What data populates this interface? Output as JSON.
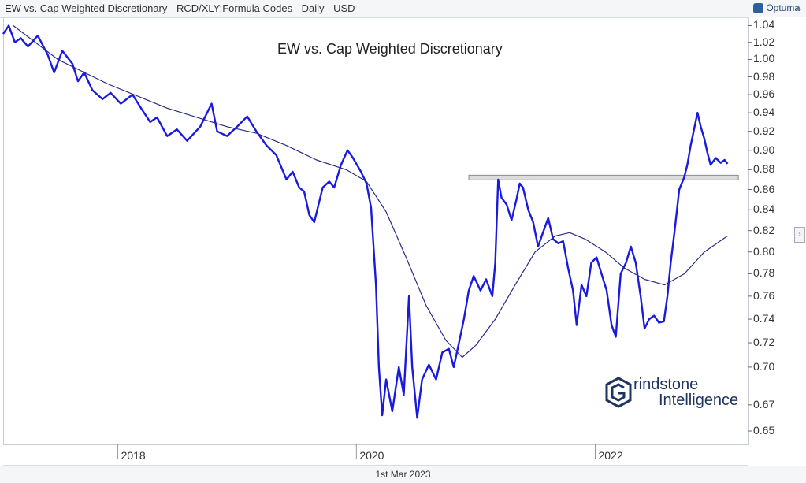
{
  "header": {
    "title": "EW vs. Cap Weighted Discretionary - RCD/XLY:Formula Codes - Daily - USD",
    "brand": "Optuma"
  },
  "footer": {
    "date": "1st Mar 2023"
  },
  "watermark": {
    "line1": "rindstone",
    "line2": "Intelligence"
  },
  "colors": {
    "price": "#1a1adf",
    "ma": "#2a2a8a",
    "resistance_fill": "#dcdcdc",
    "resistance_stroke": "#8a8a8a"
  },
  "chart_data": {
    "type": "line",
    "title": "EW vs. Cap Weighted Discretionary",
    "xlabel": "",
    "ylabel": "",
    "y_scale": "log",
    "ylim": [
      0.64,
      1.05
    ],
    "xlim": [
      "2017-01-15",
      "2023-04-15"
    ],
    "x_ticks": [
      {
        "label": "2018",
        "x": "2018-01-01"
      },
      {
        "label": "2020",
        "x": "2020-01-01"
      },
      {
        "label": "2022",
        "x": "2022-01-01"
      }
    ],
    "y_ticks": [
      1.04,
      1.02,
      1.0,
      0.98,
      0.96,
      0.94,
      0.92,
      0.9,
      0.88,
      0.86,
      0.84,
      0.82,
      0.8,
      0.78,
      0.76,
      0.74,
      0.72,
      0.7,
      0.67,
      0.65
    ],
    "y_tick_labels": [
      "1.04",
      "1.02",
      "1.00",
      "0.98",
      "0.96",
      "0.94",
      "0.92",
      "0.90",
      "0.88",
      "0.86",
      "0.84",
      "0.82",
      "0.80",
      "0.78",
      "0.76",
      "0.74",
      "0.72",
      "0.70",
      "0.67",
      "0.65"
    ],
    "resistance": {
      "from": "2020-12-10",
      "to": "2023-03-15",
      "y": 0.872
    },
    "series": [
      {
        "type": "price",
        "points": [
          [
            "2017-01-15",
            1.03
          ],
          [
            "2017-02-01",
            1.04
          ],
          [
            "2017-02-20",
            1.02
          ],
          [
            "2017-03-10",
            1.025
          ],
          [
            "2017-04-01",
            1.015
          ],
          [
            "2017-05-01",
            1.028
          ],
          [
            "2017-06-01",
            1.005
          ],
          [
            "2017-06-20",
            0.985
          ],
          [
            "2017-07-15",
            1.01
          ],
          [
            "2017-08-15",
            0.995
          ],
          [
            "2017-09-01",
            0.975
          ],
          [
            "2017-09-20",
            0.985
          ],
          [
            "2017-10-15",
            0.965
          ],
          [
            "2017-11-15",
            0.955
          ],
          [
            "2017-12-10",
            0.962
          ],
          [
            "2018-01-10",
            0.95
          ],
          [
            "2018-02-15",
            0.96
          ],
          [
            "2018-03-15",
            0.944
          ],
          [
            "2018-04-10",
            0.93
          ],
          [
            "2018-05-01",
            0.935
          ],
          [
            "2018-06-01",
            0.915
          ],
          [
            "2018-07-01",
            0.922
          ],
          [
            "2018-08-01",
            0.91
          ],
          [
            "2018-09-10",
            0.925
          ],
          [
            "2018-10-15",
            0.95
          ],
          [
            "2018-11-01",
            0.92
          ],
          [
            "2018-12-01",
            0.915
          ],
          [
            "2019-01-01",
            0.925
          ],
          [
            "2019-02-01",
            0.936
          ],
          [
            "2019-03-01",
            0.92
          ],
          [
            "2019-04-01",
            0.905
          ],
          [
            "2019-05-01",
            0.895
          ],
          [
            "2019-06-01",
            0.87
          ],
          [
            "2019-06-20",
            0.878
          ],
          [
            "2019-07-10",
            0.862
          ],
          [
            "2019-07-25",
            0.858
          ],
          [
            "2019-08-10",
            0.835
          ],
          [
            "2019-08-25",
            0.828
          ],
          [
            "2019-09-20",
            0.862
          ],
          [
            "2019-10-10",
            0.868
          ],
          [
            "2019-10-25",
            0.862
          ],
          [
            "2019-11-15",
            0.885
          ],
          [
            "2019-12-05",
            0.9
          ],
          [
            "2019-12-20",
            0.893
          ],
          [
            "2020-01-15",
            0.878
          ],
          [
            "2020-02-01",
            0.866
          ],
          [
            "2020-02-15",
            0.842
          ],
          [
            "2020-03-01",
            0.77
          ],
          [
            "2020-03-10",
            0.7
          ],
          [
            "2020-03-20",
            0.662
          ],
          [
            "2020-04-01",
            0.69
          ],
          [
            "2020-04-20",
            0.665
          ],
          [
            "2020-05-10",
            0.7
          ],
          [
            "2020-05-25",
            0.678
          ],
          [
            "2020-06-10",
            0.76
          ],
          [
            "2020-06-20",
            0.7
          ],
          [
            "2020-07-05",
            0.66
          ],
          [
            "2020-07-20",
            0.69
          ],
          [
            "2020-08-10",
            0.702
          ],
          [
            "2020-09-01",
            0.69
          ],
          [
            "2020-09-20",
            0.712
          ],
          [
            "2020-10-10",
            0.715
          ],
          [
            "2020-10-25",
            0.7
          ],
          [
            "2020-11-10",
            0.72
          ],
          [
            "2020-11-25",
            0.74
          ],
          [
            "2020-12-10",
            0.765
          ],
          [
            "2020-12-25",
            0.778
          ],
          [
            "2021-01-15",
            0.765
          ],
          [
            "2021-02-01",
            0.775
          ],
          [
            "2021-02-20",
            0.76
          ],
          [
            "2021-03-01",
            0.79
          ],
          [
            "2021-03-10",
            0.87
          ],
          [
            "2021-03-20",
            0.852
          ],
          [
            "2021-04-05",
            0.845
          ],
          [
            "2021-04-20",
            0.83
          ],
          [
            "2021-05-05",
            0.85
          ],
          [
            "2021-05-15",
            0.866
          ],
          [
            "2021-05-25",
            0.862
          ],
          [
            "2021-06-10",
            0.84
          ],
          [
            "2021-06-25",
            0.828
          ],
          [
            "2021-07-10",
            0.805
          ],
          [
            "2021-07-25",
            0.818
          ],
          [
            "2021-08-10",
            0.832
          ],
          [
            "2021-08-25",
            0.812
          ],
          [
            "2021-09-10",
            0.808
          ],
          [
            "2021-09-25",
            0.81
          ],
          [
            "2021-10-10",
            0.785
          ],
          [
            "2021-10-25",
            0.765
          ],
          [
            "2021-11-05",
            0.735
          ],
          [
            "2021-11-20",
            0.77
          ],
          [
            "2021-12-05",
            0.76
          ],
          [
            "2021-12-20",
            0.79
          ],
          [
            "2022-01-05",
            0.795
          ],
          [
            "2022-01-20",
            0.78
          ],
          [
            "2022-02-05",
            0.765
          ],
          [
            "2022-02-20",
            0.735
          ],
          [
            "2022-03-05",
            0.725
          ],
          [
            "2022-03-20",
            0.78
          ],
          [
            "2022-04-05",
            0.79
          ],
          [
            "2022-04-20",
            0.805
          ],
          [
            "2022-05-05",
            0.79
          ],
          [
            "2022-05-20",
            0.76
          ],
          [
            "2022-06-01",
            0.732
          ],
          [
            "2022-06-15",
            0.74
          ],
          [
            "2022-06-30",
            0.743
          ],
          [
            "2022-07-15",
            0.737
          ],
          [
            "2022-07-30",
            0.738
          ],
          [
            "2022-08-10",
            0.76
          ],
          [
            "2022-08-20",
            0.79
          ],
          [
            "2022-09-01",
            0.82
          ],
          [
            "2022-09-15",
            0.86
          ],
          [
            "2022-09-30",
            0.872
          ],
          [
            "2022-10-10",
            0.885
          ],
          [
            "2022-10-20",
            0.905
          ],
          [
            "2022-11-01",
            0.925
          ],
          [
            "2022-11-10",
            0.94
          ],
          [
            "2022-11-20",
            0.925
          ],
          [
            "2022-12-01",
            0.912
          ],
          [
            "2022-12-10",
            0.898
          ],
          [
            "2022-12-20",
            0.885
          ],
          [
            "2023-01-05",
            0.892
          ],
          [
            "2023-01-20",
            0.887
          ],
          [
            "2023-02-01",
            0.89
          ],
          [
            "2023-02-10",
            0.886
          ]
        ]
      },
      {
        "type": "moving_average",
        "points": [
          [
            "2017-02-15",
            1.04
          ],
          [
            "2017-07-01",
            1.0
          ],
          [
            "2017-12-01",
            0.972
          ],
          [
            "2018-06-01",
            0.945
          ],
          [
            "2018-12-01",
            0.925
          ],
          [
            "2019-03-01",
            0.918
          ],
          [
            "2019-06-01",
            0.905
          ],
          [
            "2019-09-01",
            0.89
          ],
          [
            "2019-12-01",
            0.88
          ],
          [
            "2020-02-01",
            0.868
          ],
          [
            "2020-04-01",
            0.838
          ],
          [
            "2020-06-01",
            0.795
          ],
          [
            "2020-08-01",
            0.752
          ],
          [
            "2020-10-01",
            0.722
          ],
          [
            "2020-11-20",
            0.708
          ],
          [
            "2021-01-01",
            0.718
          ],
          [
            "2021-03-01",
            0.74
          ],
          [
            "2021-05-01",
            0.77
          ],
          [
            "2021-07-01",
            0.8
          ],
          [
            "2021-09-01",
            0.815
          ],
          [
            "2021-10-15",
            0.818
          ],
          [
            "2021-12-01",
            0.812
          ],
          [
            "2022-02-01",
            0.8
          ],
          [
            "2022-04-01",
            0.785
          ],
          [
            "2022-06-01",
            0.775
          ],
          [
            "2022-08-01",
            0.77
          ],
          [
            "2022-10-01",
            0.78
          ],
          [
            "2022-12-01",
            0.8
          ],
          [
            "2023-02-10",
            0.815
          ]
        ]
      }
    ]
  }
}
